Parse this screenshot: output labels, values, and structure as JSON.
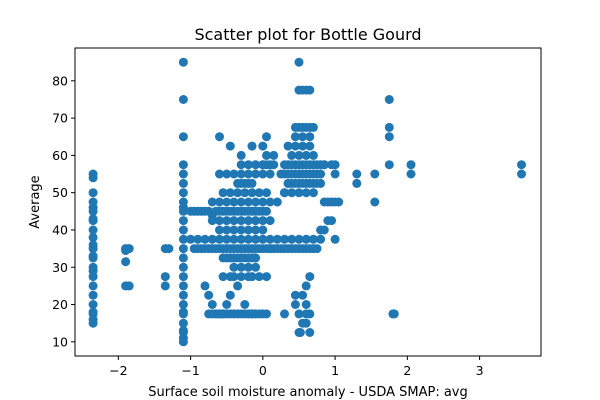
{
  "chart_data": {
    "type": "scatter",
    "title": "Scatter plot for Bottle Gourd",
    "xlabel": "Surface soil moisture anomaly  - USDA SMAP: avg",
    "ylabel": "Average",
    "xlim": [
      -2.6,
      3.85
    ],
    "ylim": [
      6.2,
      88.8
    ],
    "x_ticks": [
      -2,
      -1,
      0,
      1,
      2,
      3
    ],
    "x_tick_labels": [
      "−2",
      "−1",
      "0",
      "1",
      "2",
      "3"
    ],
    "y_ticks": [
      10,
      20,
      30,
      40,
      50,
      60,
      70,
      80
    ],
    "y_tick_labels": [
      "10",
      "20",
      "30",
      "40",
      "50",
      "60",
      "70",
      "80"
    ],
    "grid": false,
    "marker_color": "#1f77b4",
    "series": [
      {
        "x": [
          -2.35,
          -2.35,
          -2.35,
          -2.35,
          -2.35,
          -2.35,
          -2.35,
          -2.35,
          -2.35,
          -2.35,
          -2.35,
          -2.35,
          -2.35,
          -2.35,
          -2.35,
          -2.35,
          -2.35,
          -2.35,
          -2.35,
          -2.35,
          -2.35,
          -2.35,
          -2.35,
          -2.35,
          -1.9,
          -1.85,
          -1.9,
          -1.9,
          -1.85,
          -1.9,
          -1.35,
          -1.3,
          -1.35,
          -1.35,
          -1.1,
          -1.1,
          -1.1,
          -1.1,
          -1.1,
          -1.1,
          -1.1,
          -1.1,
          -1.1,
          -1.1,
          -1.1,
          -1.1,
          -1.1,
          -1.1,
          -1.1,
          -1.1,
          -1.1,
          -1.1,
          -1.1,
          -1.1,
          -1.1,
          -1.1,
          -1.1,
          -1.1,
          -1.1,
          -1.1,
          -1.1,
          -1.0,
          -0.95,
          -0.9,
          -0.85,
          -0.8,
          -0.75,
          -0.7,
          -0.65,
          -0.6,
          -0.55,
          -0.5,
          -0.45,
          -0.4,
          -0.35,
          -0.3,
          -0.25,
          -0.2,
          -0.15,
          -0.1,
          -0.05,
          0.0,
          0.05,
          -0.95,
          -0.9,
          -0.85,
          -0.8,
          -0.75,
          -0.7,
          -0.65,
          -0.6,
          -0.55,
          -0.5,
          -0.45,
          -0.4,
          -0.35,
          -0.3,
          -0.25,
          -0.2,
          -0.15,
          -0.1,
          -0.05,
          0.0,
          0.05,
          0.1,
          0.15,
          0.2,
          0.25,
          0.3,
          0.35,
          0.4,
          0.45,
          0.5,
          0.55,
          0.6,
          0.65,
          0.7,
          0.75,
          -1.0,
          -0.9,
          -0.8,
          -0.7,
          -0.6,
          -0.5,
          -0.4,
          -0.3,
          -0.2,
          -0.1,
          0.0,
          0.1,
          0.2,
          0.3,
          0.4,
          0.5,
          0.6,
          0.7,
          0.8,
          -0.55,
          -0.5,
          -0.45,
          -0.4,
          -0.35,
          -0.3,
          -0.25,
          -0.2,
          -0.15,
          -0.1,
          -0.7,
          -0.6,
          -0.5,
          -0.4,
          -0.3,
          -0.2,
          -0.1,
          0.0,
          0.1,
          -0.6,
          -0.5,
          -0.4,
          -0.3,
          -0.2,
          -0.1,
          0.0,
          -0.75,
          -0.7,
          -0.65,
          -0.6,
          -0.55,
          -0.5,
          -0.45,
          -0.4,
          -0.35,
          -0.3,
          -0.25,
          -0.2,
          -0.15,
          -0.1,
          -0.05,
          0.0,
          0.05,
          -0.7,
          -0.6,
          -0.5,
          -0.4,
          -0.3,
          -0.2,
          -0.1,
          0.0,
          0.1,
          0.2,
          -0.6,
          -0.5,
          -0.4,
          -0.3,
          -0.2,
          -0.1,
          0.0,
          0.1,
          -0.3,
          -0.2,
          -0.1,
          0.0,
          0.05,
          0.1,
          -0.35,
          -0.3,
          -0.25,
          -0.2,
          -0.15,
          -0.55,
          -0.45,
          -0.35,
          -0.25,
          -0.15,
          -0.05,
          0.05,
          -0.4,
          -0.3,
          -0.2,
          -0.1,
          -0.55,
          -0.45,
          -0.4,
          -0.3,
          -0.2,
          -0.15,
          -0.05,
          0.05,
          -0.8,
          -0.75,
          -0.7,
          -0.65,
          -0.6,
          -0.55,
          -0.5,
          -0.45,
          -0.35,
          -0.25,
          -0.15,
          -0.6,
          -0.45,
          -0.3,
          -0.15,
          0.05,
          0.15,
          0.15,
          0.25,
          0.35,
          0.3,
          0.0,
          0.0,
          0.05,
          0.1,
          0.3,
          0.35,
          0.4,
          0.45,
          0.5,
          0.55,
          0.6,
          0.65,
          0.7,
          0.75,
          0.8,
          0.85,
          0.3,
          0.35,
          0.4,
          0.45,
          0.5,
          0.55,
          0.6,
          0.65,
          0.7,
          0.75,
          0.8,
          0.35,
          0.4,
          0.45,
          0.5,
          0.55,
          0.6,
          0.65,
          0.7,
          0.75,
          0.8,
          0.3,
          0.4,
          0.5,
          0.6,
          0.7,
          0.35,
          0.45,
          0.55,
          0.65,
          0.4,
          0.5,
          0.6,
          0.7,
          0.45,
          0.5,
          0.55,
          0.6,
          0.65,
          0.7,
          0.5,
          0.55,
          0.5,
          0.6,
          0.65,
          0.45,
          0.55,
          0.65,
          0.5,
          0.6,
          0.65,
          0.5,
          0.52,
          0.6,
          0.65,
          0.3,
          0.45,
          0.55,
          0.6,
          0.45,
          0.55,
          0.6,
          0.65,
          0.85,
          0.9,
          0.95,
          1.0,
          1.05,
          0.8,
          0.85,
          0.9,
          0.95,
          1.0,
          0.85,
          0.95,
          1.0,
          1.0,
          1.3,
          1.3,
          1.55,
          1.55,
          1.75,
          1.75,
          1.75,
          1.75,
          1.8,
          1.82,
          2.05,
          2.05,
          3.58,
          3.58
        ],
        "y": [
          55,
          54,
          50,
          47.5,
          46,
          45,
          43,
          42.5,
          40,
          38,
          36,
          35,
          33,
          32.5,
          30,
          29,
          27.5,
          25,
          22.5,
          20,
          18,
          17.5,
          16,
          15,
          35,
          35,
          31.5,
          25,
          25,
          34.5,
          35,
          35,
          27.5,
          25,
          85,
          75,
          65,
          57.5,
          55,
          52.5,
          50,
          47.5,
          46,
          45,
          42.5,
          40,
          37.5,
          35,
          32.5,
          30,
          27.5,
          25,
          22.5,
          20,
          17.5,
          15,
          13,
          12.5,
          11,
          10,
          18,
          45,
          45,
          45,
          45,
          45,
          45,
          44,
          45,
          45,
          45,
          45,
          45,
          45,
          45,
          45,
          45,
          45,
          45,
          45,
          45,
          45,
          45,
          35,
          35,
          35,
          35,
          35,
          35,
          35,
          35,
          35,
          35,
          35,
          35,
          35,
          35,
          35,
          35,
          35,
          35,
          35,
          35,
          35,
          35,
          35,
          35,
          35,
          35,
          35,
          35,
          35,
          35,
          35,
          35,
          35,
          35,
          35,
          37.5,
          37.5,
          37.5,
          37.5,
          37.5,
          37.5,
          37.5,
          37.5,
          37.5,
          37.5,
          37.5,
          37.5,
          37.5,
          37.5,
          37.5,
          37.5,
          37.5,
          37.5,
          37.5,
          32.5,
          32.5,
          32.5,
          32.5,
          32.5,
          32.5,
          32.5,
          32.5,
          32.5,
          32.5,
          42.5,
          42.5,
          42.5,
          42.5,
          42.5,
          42.5,
          42.5,
          42.5,
          42.5,
          40,
          40,
          40,
          40,
          40,
          40,
          40,
          17.5,
          17.5,
          17.5,
          17.5,
          17.5,
          17.5,
          17.5,
          17.5,
          17.5,
          17.5,
          17.5,
          17.5,
          17.5,
          17.5,
          17.5,
          17.5,
          17.5,
          47.5,
          47.5,
          47.5,
          47.5,
          47.5,
          47.5,
          47.5,
          47.5,
          47.5,
          47.5,
          55,
          55,
          55,
          55,
          55,
          55,
          55,
          55,
          57.5,
          57.5,
          57.5,
          57.5,
          57.5,
          57.5,
          52.5,
          52.5,
          52.5,
          52.5,
          52.5,
          50,
          50,
          50,
          50,
          50,
          50,
          50,
          30,
          30,
          30,
          30,
          27.5,
          27.5,
          27.5,
          27.5,
          27.5,
          27.5,
          27.5,
          27.5,
          25,
          22.5,
          20,
          17.5,
          17.5,
          17.5,
          20,
          22.5,
          25,
          20,
          17.5,
          65,
          62.5,
          60,
          62.5,
          65,
          60,
          57.5,
          55,
          52.5,
          50,
          62.5,
          57.5,
          60,
          35,
          57.5,
          57.5,
          57.5,
          57.5,
          57.5,
          57.5,
          57.5,
          57.5,
          57.5,
          57.5,
          57.5,
          57.5,
          55,
          55,
          55,
          55,
          55,
          55,
          55,
          55,
          55,
          55,
          55,
          52.5,
          52.5,
          52.5,
          52.5,
          52.5,
          52.5,
          52.5,
          52.5,
          52.5,
          52.5,
          50,
          50,
          50,
          50,
          50,
          62.5,
          62.5,
          62.5,
          62.5,
          60,
          60,
          60,
          60,
          67.5,
          67.5,
          67.5,
          67.5,
          67.5,
          67.5,
          77.5,
          77.5,
          85,
          77.5,
          77.5,
          65,
          65,
          65,
          17.5,
          17.5,
          17.5,
          12.5,
          12.5,
          15,
          12.5,
          17.5,
          20,
          15,
          20,
          22.5,
          22.5,
          25,
          27.5,
          47.5,
          47.5,
          47.5,
          47.5,
          47.5,
          40,
          40,
          42.5,
          42.5,
          37.5,
          57.5,
          57.5,
          57.5,
          55,
          55,
          52.5,
          55,
          47.5,
          75,
          67.5,
          65,
          57.5,
          17.5,
          17.5,
          57.5,
          55,
          57.5,
          55
        ]
      }
    ]
  }
}
